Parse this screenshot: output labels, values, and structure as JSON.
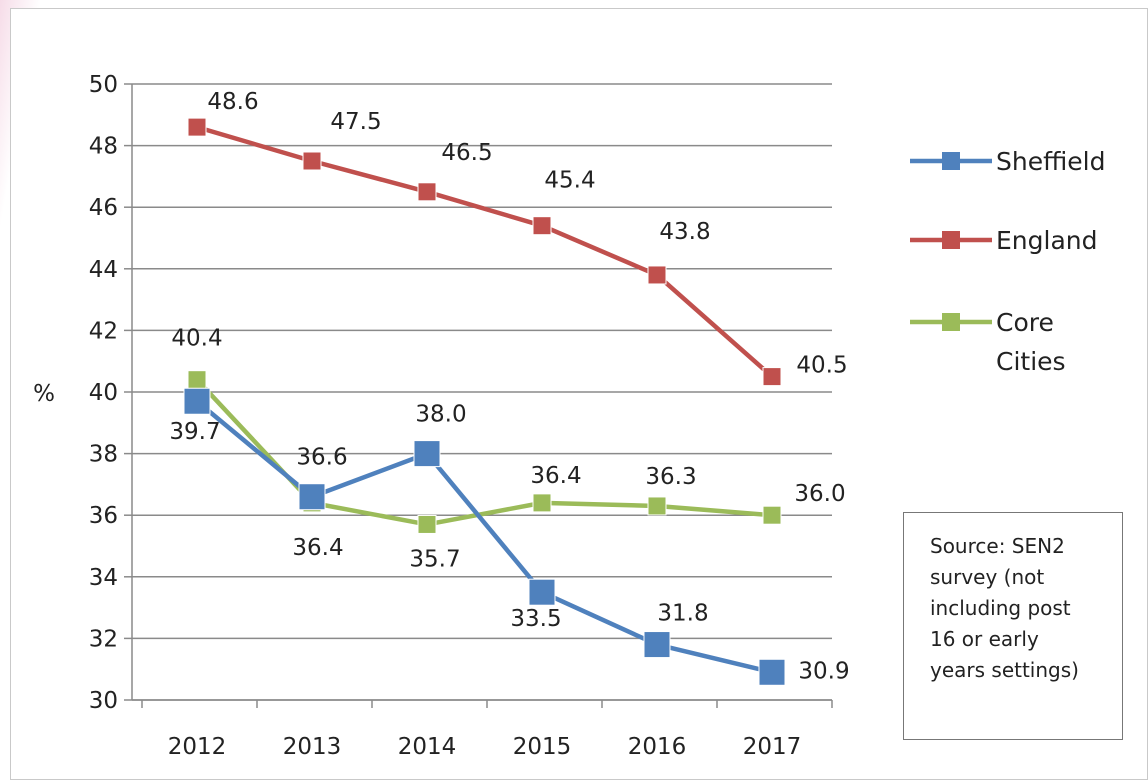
{
  "chart_data": {
    "type": "line",
    "categories": [
      "2012",
      "2013",
      "2014",
      "2015",
      "2016",
      "2017"
    ],
    "ylabel": "%",
    "ylim": [
      30,
      50
    ],
    "yticks": [
      30,
      32,
      34,
      36,
      38,
      40,
      42,
      44,
      46,
      48,
      50
    ],
    "grid": "horizontal",
    "legend_position": "right",
    "series": [
      {
        "name": "Sheffield",
        "color": "#4f81bd",
        "values": [
          39.7,
          36.6,
          38.0,
          33.5,
          31.8,
          30.9
        ],
        "labels": [
          "39.7",
          "36.6",
          "38.0",
          "33.5",
          "31.8",
          "30.9"
        ]
      },
      {
        "name": "England",
        "color": "#c0504d",
        "values": [
          48.6,
          47.5,
          46.5,
          45.4,
          43.8,
          40.5
        ],
        "labels": [
          "48.6",
          "47.5",
          "46.5",
          "45.4",
          "43.8",
          "40.5"
        ]
      },
      {
        "name": "Core Cities",
        "color": "#9bbb59",
        "values": [
          40.4,
          36.4,
          35.7,
          36.4,
          36.3,
          36.0
        ],
        "labels": [
          "40.4",
          "36.4",
          "35.7",
          "36.4",
          "36.3",
          "36.0"
        ]
      }
    ],
    "annotation": {
      "lines": [
        "Source: SEN2",
        "survey (not",
        "including post",
        "16 or early",
        "years settings)"
      ]
    }
  }
}
